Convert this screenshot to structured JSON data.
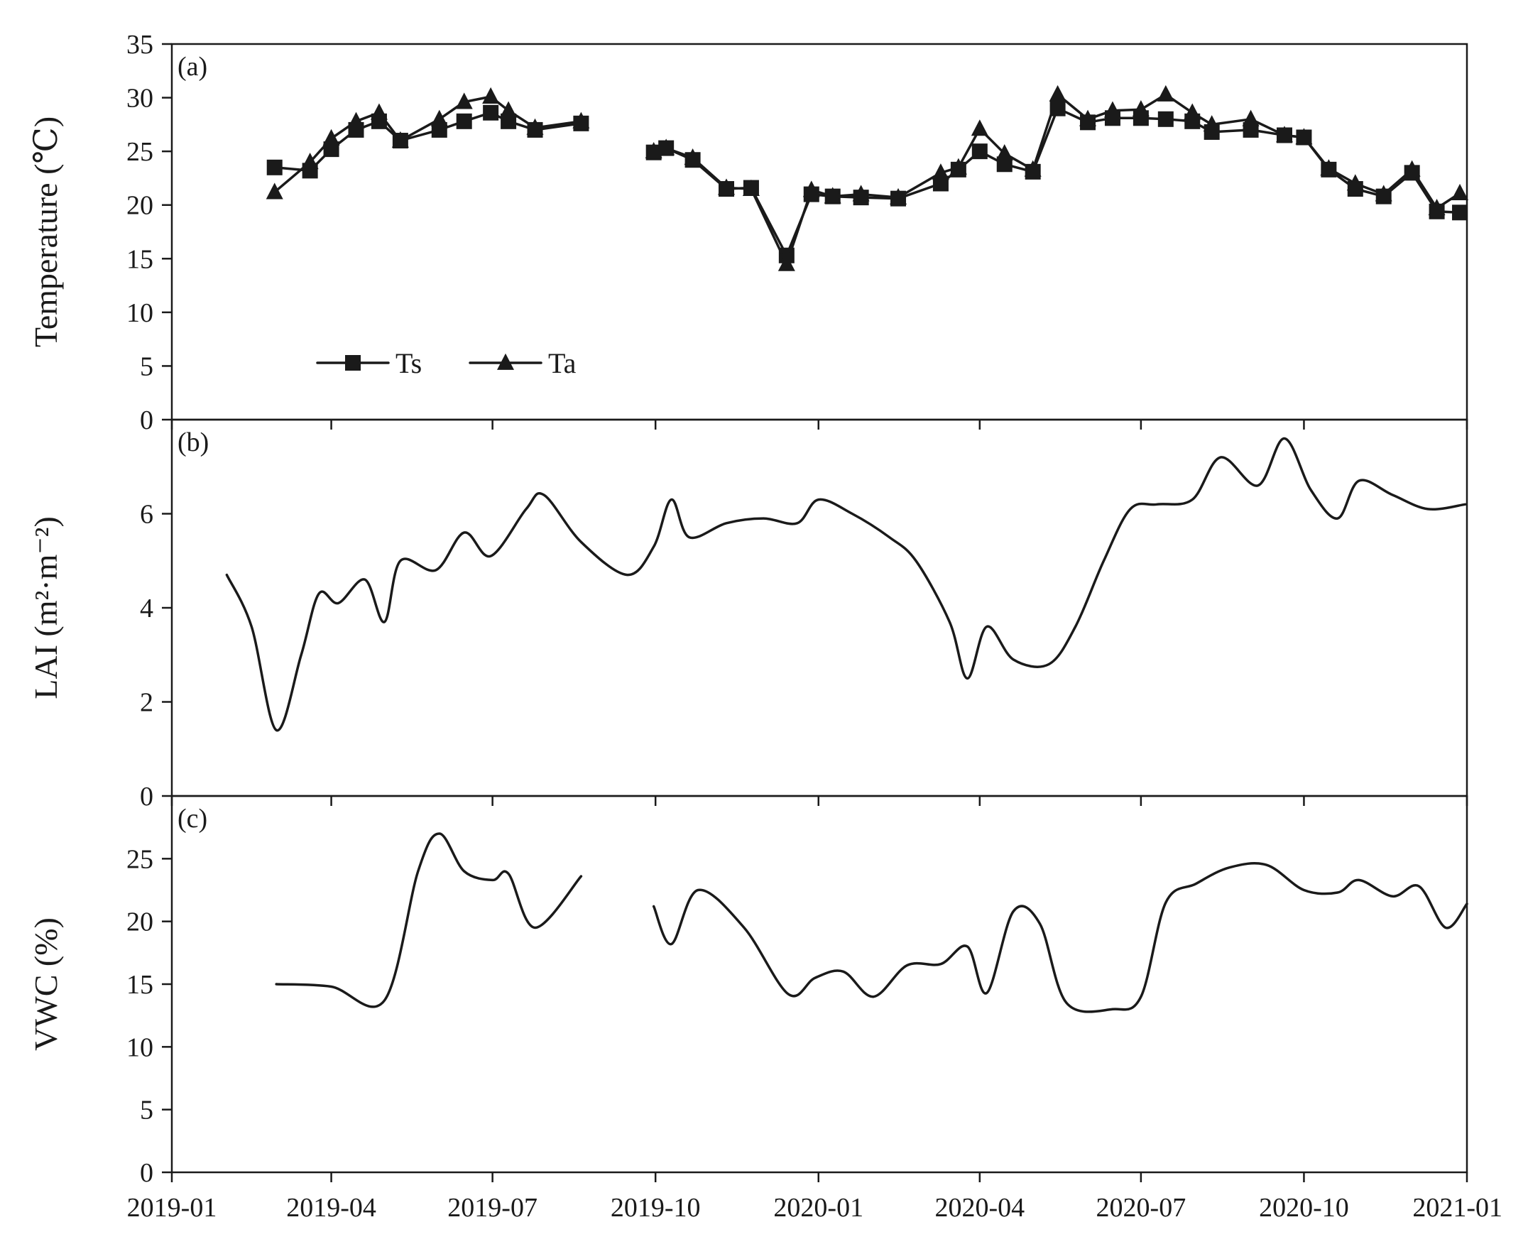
{
  "chart_data": [
    {
      "type": "line",
      "panel_label": "(a)",
      "ylabel": "Temperature (℃)",
      "ylim": [
        0,
        35
      ],
      "yticks": [
        0,
        5,
        10,
        15,
        20,
        25,
        30,
        35
      ],
      "xlim": [
        "2019-01-01",
        "2021-01-01"
      ],
      "xticks": [
        "2019-01",
        "2019-04",
        "2019-07",
        "2019-10",
        "2020-01",
        "2020-04",
        "2020-07",
        "2020-10",
        "2021-01"
      ],
      "legend": {
        "placement": "bottom-left"
      },
      "series": [
        {
          "name": "Ts",
          "marker": "square",
          "segments": [
            [
              [
                "2019-02-28",
                23.5
              ],
              [
                "2019-03-20",
                23.2
              ],
              [
                "2019-04-01",
                25.2
              ],
              [
                "2019-04-15",
                27.0
              ],
              [
                "2019-04-28",
                27.8
              ],
              [
                "2019-05-10",
                26.0
              ],
              [
                "2019-06-01",
                27.0
              ],
              [
                "2019-06-15",
                27.8
              ],
              [
                "2019-06-30",
                28.6
              ],
              [
                "2019-07-10",
                27.8
              ],
              [
                "2019-07-25",
                27.0
              ],
              [
                "2019-08-20",
                27.6
              ]
            ],
            [
              [
                "2019-09-30",
                24.9
              ],
              [
                "2019-10-07",
                25.3
              ],
              [
                "2019-10-22",
                24.2
              ],
              [
                "2019-11-10",
                21.5
              ],
              [
                "2019-11-24",
                21.6
              ],
              [
                "2019-12-14",
                15.3
              ],
              [
                "2019-12-28",
                21.0
              ],
              [
                "2020-01-09",
                20.8
              ],
              [
                "2020-01-25",
                20.7
              ],
              [
                "2020-02-15",
                20.6
              ],
              [
                "2020-03-10",
                22.0
              ],
              [
                "2020-03-20",
                23.3
              ],
              [
                "2020-04-01",
                25.0
              ],
              [
                "2020-04-15",
                23.8
              ],
              [
                "2020-05-01",
                23.1
              ],
              [
                "2020-05-15",
                29.0
              ],
              [
                "2020-06-01",
                27.7
              ],
              [
                "2020-06-15",
                28.1
              ],
              [
                "2020-07-01",
                28.1
              ],
              [
                "2020-07-15",
                28.0
              ],
              [
                "2020-07-30",
                27.8
              ],
              [
                "2020-08-10",
                26.8
              ],
              [
                "2020-09-01",
                27.0
              ],
              [
                "2020-09-20",
                26.5
              ],
              [
                "2020-10-01",
                26.3
              ],
              [
                "2020-10-15",
                23.3
              ],
              [
                "2020-10-30",
                21.5
              ],
              [
                "2020-11-15",
                20.8
              ],
              [
                "2020-12-01",
                23.0
              ],
              [
                "2020-12-15",
                19.4
              ],
              [
                "2020-12-28",
                19.3
              ]
            ]
          ]
        },
        {
          "name": "Ta",
          "marker": "triangle",
          "segments": [
            [
              [
                "2019-02-28",
                21.2
              ],
              [
                "2019-03-20",
                24.0
              ],
              [
                "2019-04-01",
                26.2
              ],
              [
                "2019-04-15",
                27.8
              ],
              [
                "2019-04-28",
                28.6
              ],
              [
                "2019-05-10",
                26.0
              ],
              [
                "2019-06-01",
                28.0
              ],
              [
                "2019-06-15",
                29.6
              ],
              [
                "2019-06-30",
                30.1
              ],
              [
                "2019-07-10",
                28.8
              ],
              [
                "2019-07-25",
                27.2
              ],
              [
                "2019-08-20",
                27.8
              ]
            ],
            [
              [
                "2019-09-30",
                25.0
              ],
              [
                "2019-10-07",
                25.3
              ],
              [
                "2019-10-22",
                24.4
              ],
              [
                "2019-11-10",
                21.6
              ],
              [
                "2019-11-24",
                21.5
              ],
              [
                "2019-12-14",
                14.5
              ],
              [
                "2019-12-28",
                21.4
              ],
              [
                "2020-01-09",
                20.8
              ],
              [
                "2020-01-25",
                21.0
              ],
              [
                "2020-02-15",
                20.7
              ],
              [
                "2020-03-10",
                23.0
              ],
              [
                "2020-03-20",
                23.5
              ],
              [
                "2020-04-01",
                27.1
              ],
              [
                "2020-04-15",
                24.8
              ],
              [
                "2020-05-01",
                23.3
              ],
              [
                "2020-05-15",
                30.3
              ],
              [
                "2020-06-01",
                28.0
              ],
              [
                "2020-06-15",
                28.8
              ],
              [
                "2020-07-01",
                28.9
              ],
              [
                "2020-07-15",
                30.3
              ],
              [
                "2020-07-30",
                28.6
              ],
              [
                "2020-08-10",
                27.5
              ],
              [
                "2020-09-01",
                28.0
              ],
              [
                "2020-09-20",
                26.5
              ],
              [
                "2020-10-01",
                26.3
              ],
              [
                "2020-10-15",
                23.4
              ],
              [
                "2020-10-30",
                22.0
              ],
              [
                "2020-11-15",
                21.0
              ],
              [
                "2020-12-01",
                23.3
              ],
              [
                "2020-12-15",
                19.7
              ],
              [
                "2020-12-28",
                21.1
              ]
            ]
          ]
        }
      ]
    },
    {
      "type": "line",
      "panel_label": "(b)",
      "ylabel": "LAI (m²·m⁻²)",
      "ylim": [
        0,
        8
      ],
      "yticks": [
        0,
        2,
        4,
        6
      ],
      "xlim": [
        "2019-01-01",
        "2021-01-01"
      ],
      "series": [
        {
          "smooth": true,
          "segments": [
            [
              [
                "2019-02-01",
                4.7
              ],
              [
                "2019-02-15",
                3.6
              ],
              [
                "2019-03-01",
                1.4
              ],
              [
                "2019-03-15",
                3.0
              ],
              [
                "2019-03-25",
                4.3
              ],
              [
                "2019-04-05",
                4.1
              ],
              [
                "2019-04-20",
                4.6
              ],
              [
                "2019-05-01",
                3.7
              ],
              [
                "2019-05-10",
                5.0
              ],
              [
                "2019-05-30",
                4.8
              ],
              [
                "2019-06-15",
                5.6
              ],
              [
                "2019-06-30",
                5.1
              ],
              [
                "2019-07-20",
                6.1
              ],
              [
                "2019-07-30",
                6.4
              ],
              [
                "2019-08-20",
                5.4
              ],
              [
                "2019-09-15",
                4.7
              ],
              [
                "2019-09-30",
                5.3
              ],
              [
                "2019-10-10",
                6.3
              ],
              [
                "2019-10-20",
                5.5
              ],
              [
                "2019-11-10",
                5.8
              ],
              [
                "2019-12-01",
                5.9
              ],
              [
                "2019-12-20",
                5.8
              ],
              [
                "2020-01-01",
                6.3
              ],
              [
                "2020-01-20",
                6.0
              ],
              [
                "2020-02-10",
                5.5
              ],
              [
                "2020-02-25",
                5.0
              ],
              [
                "2020-03-15",
                3.7
              ],
              [
                "2020-03-25",
                2.5
              ],
              [
                "2020-04-05",
                3.6
              ],
              [
                "2020-04-20",
                2.9
              ],
              [
                "2020-05-10",
                2.8
              ],
              [
                "2020-05-25",
                3.6
              ],
              [
                "2020-06-10",
                5.0
              ],
              [
                "2020-06-25",
                6.1
              ],
              [
                "2020-07-10",
                6.2
              ],
              [
                "2020-07-30",
                6.3
              ],
              [
                "2020-08-15",
                7.2
              ],
              [
                "2020-09-05",
                6.6
              ],
              [
                "2020-09-20",
                7.6
              ],
              [
                "2020-10-05",
                6.5
              ],
              [
                "2020-10-20",
                5.9
              ],
              [
                "2020-11-01",
                6.7
              ],
              [
                "2020-11-20",
                6.4
              ],
              [
                "2020-12-10",
                6.1
              ],
              [
                "2020-12-31",
                6.2
              ]
            ]
          ]
        }
      ]
    },
    {
      "type": "line",
      "panel_label": "(c)",
      "ylabel": "VWC (%)",
      "ylim": [
        0,
        30
      ],
      "yticks": [
        0,
        5,
        10,
        15,
        20,
        25
      ],
      "xlim": [
        "2019-01-01",
        "2021-01-01"
      ],
      "xticks": [
        "2019-01",
        "2019-04",
        "2019-07",
        "2019-10",
        "2020-01",
        "2020-04",
        "2020-07",
        "2020-10",
        "2021-01"
      ],
      "series": [
        {
          "smooth": true,
          "segments": [
            [
              [
                "2019-03-01",
                15.0
              ],
              [
                "2019-04-01",
                14.8
              ],
              [
                "2019-05-01",
                13.7
              ],
              [
                "2019-05-20",
                24.0
              ],
              [
                "2019-06-01",
                27.0
              ],
              [
                "2019-06-15",
                24.0
              ],
              [
                "2019-07-01",
                23.3
              ],
              [
                "2019-07-10",
                23.8
              ],
              [
                "2019-07-25",
                19.5
              ],
              [
                "2019-08-20",
                23.6
              ]
            ],
            [
              [
                "2019-09-30",
                21.2
              ],
              [
                "2019-10-10",
                18.2
              ],
              [
                "2019-10-25",
                22.5
              ],
              [
                "2019-11-20",
                19.5
              ],
              [
                "2019-12-15",
                14.2
              ],
              [
                "2019-12-30",
                15.5
              ],
              [
                "2020-01-15",
                16.0
              ],
              [
                "2020-02-01",
                14.0
              ],
              [
                "2020-02-20",
                16.5
              ],
              [
                "2020-03-10",
                16.6
              ],
              [
                "2020-03-25",
                18.0
              ],
              [
                "2020-04-05",
                14.3
              ],
              [
                "2020-04-20",
                20.8
              ],
              [
                "2020-05-05",
                19.8
              ],
              [
                "2020-05-20",
                13.5
              ],
              [
                "2020-06-15",
                13.0
              ],
              [
                "2020-07-01",
                14.0
              ],
              [
                "2020-07-15",
                21.5
              ],
              [
                "2020-08-01",
                23.0
              ],
              [
                "2020-08-20",
                24.3
              ],
              [
                "2020-09-10",
                24.5
              ],
              [
                "2020-10-01",
                22.5
              ],
              [
                "2020-10-20",
                22.3
              ],
              [
                "2020-11-01",
                23.3
              ],
              [
                "2020-11-20",
                22.0
              ],
              [
                "2020-12-05",
                22.8
              ],
              [
                "2020-12-20",
                19.5
              ],
              [
                "2021-01-01",
                21.4
              ]
            ]
          ]
        }
      ]
    }
  ]
}
